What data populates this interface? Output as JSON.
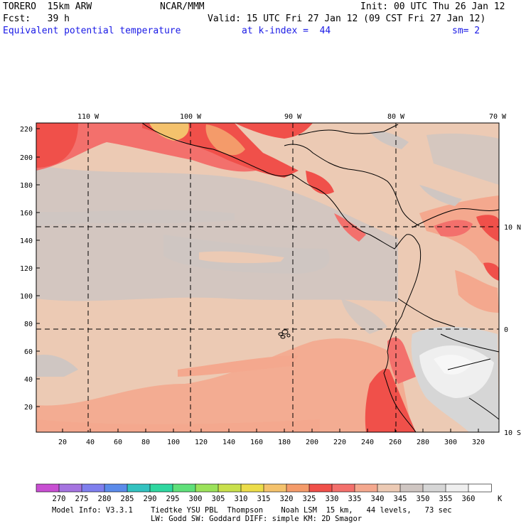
{
  "header": {
    "model": "TORERO  15km ARW",
    "center": "NCAR/MMM",
    "init": "Init: 00 UTC Thu 26 Jan 12",
    "fcst": "Fcst:   39 h",
    "valid": "Valid: 15 UTC Fri 27 Jan 12 (09 CST Fri 27 Jan 12)",
    "field": "Equivalent potential temperature",
    "level": "at k-index =  44",
    "smooth": "sm= 2"
  },
  "map": {
    "lon_labels": [
      "110 W",
      "100 W",
      "90 W",
      "80 W",
      "70 W"
    ],
    "lat_labels": [
      "10 N",
      "0",
      "10 S"
    ],
    "y_ticks": [
      "220",
      "200",
      "180",
      "160",
      "140",
      "120",
      "100",
      "80",
      "60",
      "40",
      "20"
    ],
    "x_ticks": [
      "20",
      "40",
      "60",
      "80",
      "100",
      "120",
      "140",
      "160",
      "180",
      "200",
      "220",
      "240",
      "260",
      "280",
      "300",
      "320"
    ]
  },
  "colorbar": {
    "unit": "K",
    "labels": [
      "270",
      "275",
      "280",
      "285",
      "290",
      "295",
      "300",
      "305",
      "310",
      "315",
      "320",
      "325",
      "330",
      "335",
      "340",
      "345",
      "350",
      "355",
      "360"
    ],
    "colors": [
      "#c84fd2",
      "#a574e0",
      "#7f7fee",
      "#5b8bea",
      "#33c2c0",
      "#2fd7a0",
      "#5fe07a",
      "#9be25a",
      "#c9e04c",
      "#ecdd4a",
      "#f4c26c",
      "#f49b6a",
      "#f0504a",
      "#f3706c",
      "#f4a88e",
      "#eccab4",
      "#cfc6c2",
      "#d6d6d6",
      "#efefef",
      "#ffffff"
    ]
  },
  "footer": {
    "line1": "Model Info: V3.3.1    Tiedtke YSU PBL  Thompson    Noah LSM  15 km,   44 levels,   73 sec",
    "line2": "LW: Godd SW: Goddard DIFF: simple KM: 2D Smagor"
  }
}
